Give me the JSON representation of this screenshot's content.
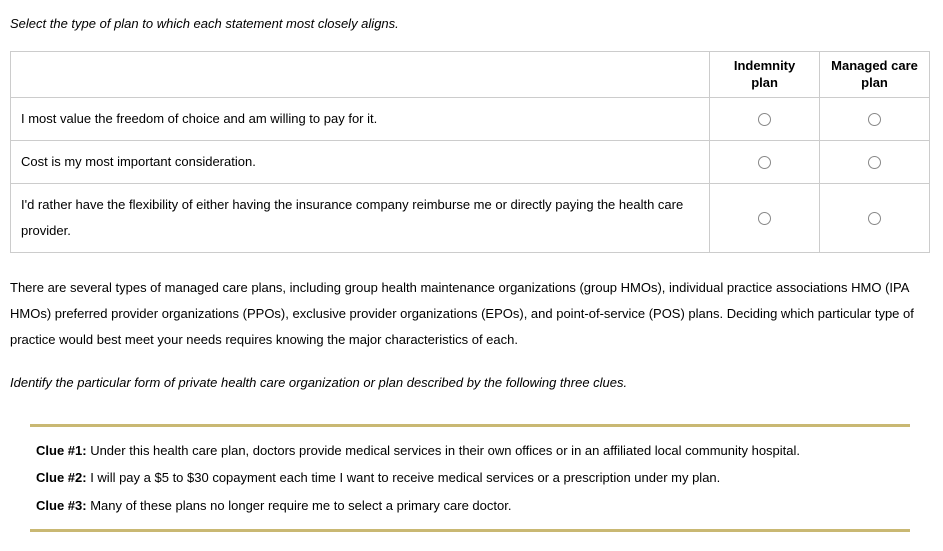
{
  "instruction1": "Select the type of plan to which each statement most closely aligns.",
  "table": {
    "col1_header_line1": "Indemnity",
    "col1_header_line2": "plan",
    "col2_header_line1": "Managed care",
    "col2_header_line2": "plan",
    "rows": [
      "I most value the freedom of choice and am willing to pay for it.",
      "Cost is my most important consideration.",
      "I'd rather have the flexibility of either having the insurance company reimburse me or directly paying the health care provider."
    ]
  },
  "paragraph": "There are several types of managed care plans, including group health maintenance organizations (group HMOs), individual practice associations HMO (IPA HMOs) preferred provider organizations (PPOs), exclusive provider organizations (EPOs), and point-of-service (POS) plans. Deciding which particular type of practice would best meet your needs requires knowing the major characteristics of each.",
  "instruction2": "Identify the particular form of private health care organization or plan described by the following three clues.",
  "clues": [
    {
      "label": "Clue #1:",
      "text": " Under this health care plan, doctors provide medical services in their own offices or in an affiliated local community hospital."
    },
    {
      "label": "Clue #2:",
      "text": " I will pay a $5 to $30 copayment each time I want to receive medical services or a prescription under my plan."
    },
    {
      "label": "Clue #3:",
      "text": " Many of these plans no longer require me to select a primary care doctor."
    }
  ],
  "colors": {
    "border": "#cccccc",
    "accent": "#c9b873",
    "text": "#000000",
    "background": "#ffffff"
  }
}
